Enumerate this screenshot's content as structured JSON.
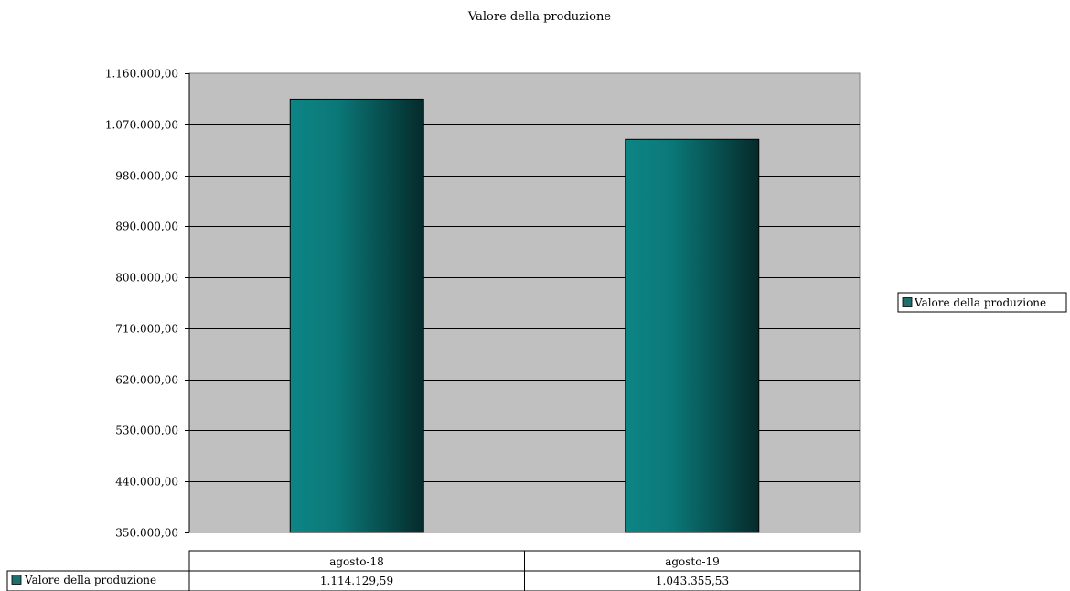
{
  "chart_data": {
    "type": "bar",
    "title": "Valore della produzione",
    "categories": [
      "agosto-18",
      "agosto-19"
    ],
    "series": [
      {
        "name": "Valore della produzione",
        "values": [
          1114129.59,
          1043355.53
        ],
        "labels": [
          "1.114.129,59",
          "1.043.355,53"
        ]
      }
    ],
    "ylim": [
      350000,
      1160000
    ],
    "yticks": [
      350000,
      440000,
      530000,
      620000,
      710000,
      800000,
      890000,
      980000,
      1070000,
      1160000
    ],
    "ytick_labels": [
      "350.000,00",
      "440.000,00",
      "530.000,00",
      "620.000,00",
      "710.000,00",
      "800.000,00",
      "890.000,00",
      "980.000,00",
      "1.070.000,00",
      "1.160.000,00"
    ],
    "grid": true,
    "legend": {
      "position": "right",
      "entries": [
        "Valore della produzione"
      ]
    },
    "data_table": true,
    "colors": {
      "bar": "#0d7f7f",
      "bar_dark": "#062f2f",
      "plot_bg": "#c0c0c0",
      "legend_key": "#1f6f6f"
    }
  }
}
